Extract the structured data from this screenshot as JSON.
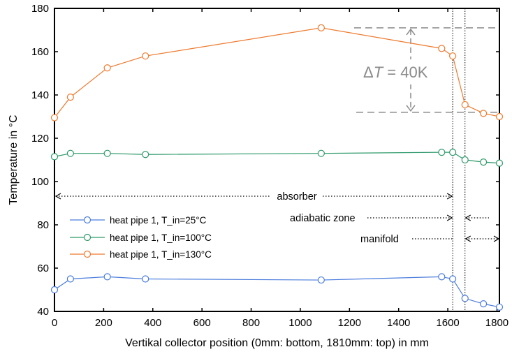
{
  "chart_data": {
    "type": "line",
    "xlabel": "Vertikal collector position (0mm: bottom, 1810mm: top) in mm",
    "ylabel": "Temperature in °C",
    "xlim": [
      0,
      1810
    ],
    "ylim": [
      40,
      180
    ],
    "xticks": [
      "0",
      "200",
      "400",
      "600",
      "800",
      "1000",
      "1200",
      "1400",
      "1600",
      "1800"
    ],
    "yticks": [
      "40",
      "60",
      "80",
      "100",
      "120",
      "140",
      "160",
      "180"
    ],
    "grid": false,
    "legend_position": "left",
    "series": [
      {
        "name": "heat pipe 1, T_in=25°C",
        "color": "#4a7cdc",
        "x": [
          0,
          65,
          215,
          370,
          1085,
          1575,
          1620,
          1670,
          1745,
          1810
        ],
        "y": [
          50,
          55,
          56,
          55,
          54.5,
          56,
          55,
          46,
          43.5,
          42
        ]
      },
      {
        "name": "heat pipe 1, T_in=100°C",
        "color": "#2e9a6a",
        "x": [
          0,
          65,
          215,
          370,
          1085,
          1575,
          1620,
          1670,
          1745,
          1810
        ],
        "y": [
          111.5,
          113,
          113,
          112.5,
          113,
          113.5,
          113.5,
          110,
          109,
          108.5
        ]
      },
      {
        "name": "heat pipe 1, T_in=130°C",
        "color": "#ee7a2e",
        "x": [
          0,
          65,
          215,
          370,
          1085,
          1575,
          1620,
          1670,
          1745,
          1810
        ],
        "y": [
          129.5,
          139,
          152.5,
          158,
          171,
          161.5,
          158,
          135.5,
          131.5,
          130
        ]
      }
    ],
    "annotations": {
      "delta_label": "ΔT = 40K",
      "delta_upper": 171,
      "delta_lower": 132,
      "absorber": "absorber",
      "adiabatic": "adiabatic zone",
      "manifold": "manifold",
      "absorber_end": 1620,
      "manifold_start": 1670
    }
  }
}
